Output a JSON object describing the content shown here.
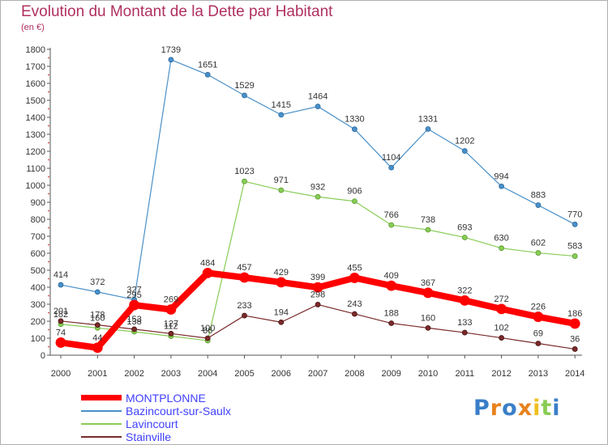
{
  "title": "Evolution du Montant de la Dette par Habitant",
  "subtitle": "(en €)",
  "logo_text": "Proxiti",
  "chart_data": {
    "type": "line",
    "title": "Evolution du Montant de la Dette par Habitant",
    "subtitle": "(en €)",
    "xlabel": "",
    "ylabel": "",
    "ylim": [
      0,
      1800
    ],
    "yticks": [
      "0",
      "100",
      "200",
      "300",
      "400",
      "500",
      "600",
      "700",
      "800",
      "900",
      "1000",
      "1100",
      "1200",
      "1300",
      "1400",
      "1500",
      "1600",
      "1700",
      "1800"
    ],
    "x": [
      "2000",
      "2001",
      "2002",
      "2003",
      "2004",
      "2005",
      "2006",
      "2007",
      "2008",
      "2009",
      "2010",
      "2011",
      "2012",
      "2013",
      "2014"
    ],
    "grid": false,
    "legend_position": "bottom-left",
    "series": [
      {
        "name": "MONTPLONNE",
        "color": "#ff0000",
        "values": [
          74,
          44,
          295,
          269,
          484,
          457,
          429,
          399,
          455,
          409,
          367,
          322,
          272,
          226,
          186
        ]
      },
      {
        "name": "Bazincourt-sur-Saulx",
        "color": "#4a90c8",
        "values": [
          414,
          372,
          327,
          1739,
          1651,
          1529,
          1415,
          1464,
          1330,
          1104,
          1331,
          1202,
          994,
          883,
          770
        ]
      },
      {
        "name": "Lavincourt",
        "color": "#88cc55",
        "values": [
          182,
          160,
          138,
          112,
          86,
          1023,
          971,
          932,
          906,
          766,
          738,
          693,
          630,
          602,
          583
        ]
      },
      {
        "name": "Stainville",
        "color": "#7a2a2a",
        "values": [
          201,
          178,
          153,
          127,
          100,
          233,
          194,
          298,
          243,
          188,
          160,
          133,
          102,
          69,
          36
        ]
      }
    ]
  }
}
